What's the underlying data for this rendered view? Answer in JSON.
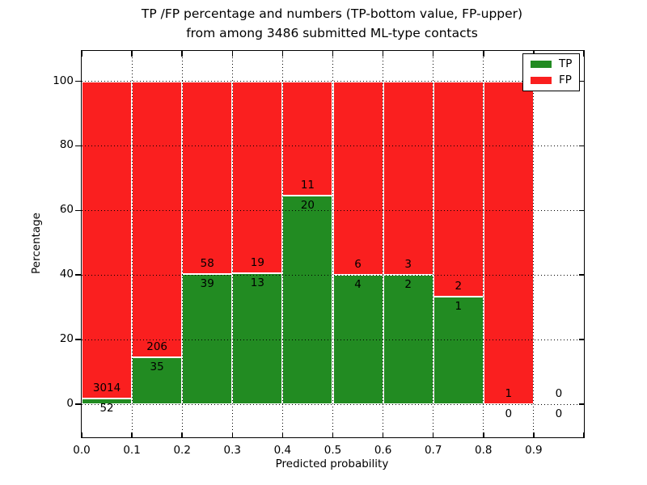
{
  "chart_data": {
    "type": "bar",
    "stacked": true,
    "title_line1": "TP /FP percentage and numbers (TP-bottom value, FP-upper)",
    "title_line2": "from among 3486 submitted ML-type contacts",
    "xlabel": "Predicted probability",
    "ylabel": "Percentage",
    "total_contacts": 3486,
    "x_tick_labels": [
      "0.0",
      "0.1",
      "0.2",
      "0.3",
      "0.4",
      "0.5",
      "0.6",
      "0.7",
      "0.8",
      "0.9"
    ],
    "y_tick_values": [
      0,
      20,
      40,
      60,
      80,
      100
    ],
    "x_range": [
      0.0,
      1.0
    ],
    "ylim_display": [
      -11,
      110
    ],
    "grid": "dotted",
    "bar_edge_color": "#ffffff",
    "categories": [
      "0.0-0.1",
      "0.1-0.2",
      "0.2-0.3",
      "0.3-0.4",
      "0.4-0.5",
      "0.5-0.6",
      "0.6-0.7",
      "0.7-0.8",
      "0.8-0.9",
      "0.9-1.0"
    ],
    "series": [
      {
        "name": "TP",
        "color": "#228b22",
        "counts": [
          52,
          35,
          39,
          13,
          20,
          4,
          2,
          1,
          0,
          0
        ]
      },
      {
        "name": "FP",
        "color": "#fa1f1f",
        "counts": [
          3014,
          206,
          58,
          19,
          11,
          6,
          3,
          2,
          1,
          0
        ]
      }
    ],
    "tp_percent": [
      1.7,
      14.5,
      40.2,
      40.6,
      64.5,
      40.0,
      40.0,
      33.3,
      0.0,
      null
    ],
    "legend": {
      "position": "upper right",
      "items": [
        {
          "label": "TP",
          "color": "#228b22"
        },
        {
          "label": "FP",
          "color": "#fa1f1f"
        }
      ]
    }
  }
}
